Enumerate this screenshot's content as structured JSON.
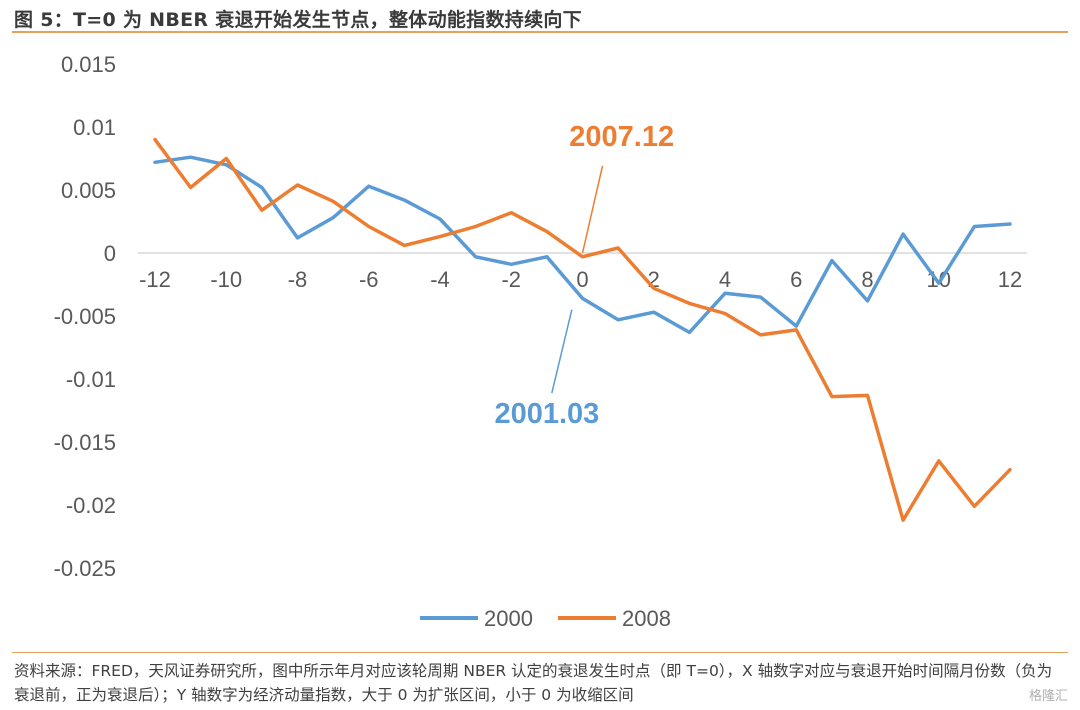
{
  "title": "图 5：T=0 为 NBER 衰退开始发生节点，整体动能指数持续向下",
  "source": "资料来源：FRED，天风证券研究所，图中所示年月对应该轮周期 NBER 认定的衰退发生时点（即 T=0），X 轴数字对应与衰退开始时间隔月份数（负为衰退前，正为衰退后）；Y 轴数字为经济动量指数，大于 0 为扩张区间，小于 0 为收缩区间",
  "watermark": "格隆汇",
  "chart_data": {
    "type": "line",
    "x": [
      -12,
      -11,
      -10,
      -9,
      -8,
      -7,
      -6,
      -5,
      -4,
      -3,
      -2,
      -1,
      0,
      1,
      2,
      3,
      4,
      5,
      6,
      7,
      8,
      9,
      10,
      11,
      12
    ],
    "xticks": [
      "-12",
      "-10",
      "-8",
      "-6",
      "-4",
      "-2",
      "0",
      "2",
      "4",
      "6",
      "8",
      "10",
      "12"
    ],
    "yticks": [
      "0.015",
      "0.01",
      "0.005",
      "0",
      "-0.005",
      "-0.01",
      "-0.015",
      "-0.02",
      "-0.025"
    ],
    "ylim": [
      -0.025,
      0.015
    ],
    "xlim": [
      -12,
      12
    ],
    "grid": false,
    "legend_position": "bottom",
    "series": [
      {
        "name": "2000",
        "color": "#5b9bd5",
        "values": [
          0.0072,
          0.0076,
          0.007,
          0.0052,
          0.0012,
          0.0028,
          0.0053,
          0.0042,
          0.0027,
          -0.0003,
          -0.0009,
          -0.0003,
          -0.0036,
          -0.0053,
          -0.0047,
          -0.0063,
          -0.0032,
          -0.0035,
          -0.0058,
          -0.0006,
          -0.0038,
          0.0015,
          -0.0024,
          0.0021,
          0.0023
        ]
      },
      {
        "name": "2008",
        "color": "#ed7d31",
        "values": [
          0.009,
          0.0052,
          0.0075,
          0.0034,
          0.0054,
          0.0041,
          0.0021,
          0.0006,
          0.0013,
          0.0021,
          0.0032,
          0.0017,
          -0.0003,
          0.0004,
          -0.0028,
          -0.004,
          -0.0048,
          -0.0065,
          -0.0061,
          -0.0114,
          -0.0113,
          -0.0212,
          -0.0165,
          -0.0201,
          -0.0172
        ]
      }
    ],
    "annotations": [
      {
        "text": "2007.12",
        "color": "#ed7d31",
        "x": 0,
        "y": 0.0,
        "tx": 1.1,
        "ty": 0.0085
      },
      {
        "text": "2001.03",
        "color": "#5b9bd5",
        "x": -0.3,
        "y": -0.0045,
        "tx": -1.0,
        "ty": -0.0135
      }
    ]
  }
}
